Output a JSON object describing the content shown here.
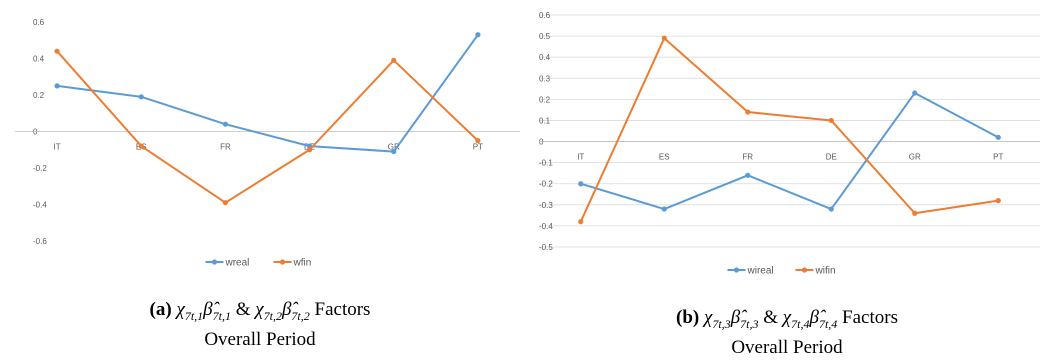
{
  "chart_data": [
    {
      "type": "line",
      "categories": [
        "IT",
        "ES",
        "FR",
        "DE",
        "GR",
        "PT"
      ],
      "series": [
        {
          "name": "wreal",
          "color": "#5B9BD5",
          "values": [
            0.25,
            0.19,
            0.04,
            -0.08,
            -0.11,
            0.53
          ]
        },
        {
          "name": "wfin",
          "color": "#ED7D31",
          "values": [
            0.44,
            -0.08,
            -0.39,
            -0.1,
            0.39,
            -0.05
          ]
        }
      ],
      "ylim": [
        -0.6,
        0.6
      ],
      "yticks": [
        "0.6",
        "0.4",
        "0.2",
        "0",
        "-0.2",
        "-0.4",
        "-0.6"
      ],
      "ytick_values": [
        0.6,
        0.4,
        0.2,
        0,
        -0.2,
        -0.4,
        -0.6
      ],
      "grid": false,
      "legend": "bottom",
      "caption": {
        "tag": "(a)",
        "formula": "χ7t,1β̂7t,1 & χ7t,2β̂7t,2",
        "pre": "χ",
        "s1": "7t,1",
        "b1": "β̂",
        "s2": "7t,1",
        "amp": "&",
        "pre2": "χ",
        "s3": "7t,2",
        "b2": "β̂",
        "s4": "7t,2",
        "word": "Factors",
        "line2": "Overall Period"
      }
    },
    {
      "type": "line",
      "categories": [
        "IT",
        "ES",
        "FR",
        "DE",
        "GR",
        "PT"
      ],
      "series": [
        {
          "name": "wireal",
          "color": "#5B9BD5",
          "values": [
            -0.2,
            -0.32,
            -0.16,
            -0.32,
            0.23,
            0.02
          ]
        },
        {
          "name": "wifin",
          "color": "#ED7D31",
          "values": [
            -0.38,
            0.49,
            0.14,
            0.1,
            -0.34,
            -0.28
          ]
        }
      ],
      "ylim": [
        -0.5,
        0.6
      ],
      "yticks": [
        "0.6",
        "0.5",
        "0.4",
        "0.3",
        "0.2",
        "0.1",
        "0",
        "-0.1",
        "-0.2",
        "-0.3",
        "-0.4",
        "-0.5"
      ],
      "ytick_values": [
        0.6,
        0.5,
        0.4,
        0.3,
        0.2,
        0.1,
        0,
        -0.1,
        -0.2,
        -0.3,
        -0.4,
        -0.5
      ],
      "grid": true,
      "legend": "bottom",
      "caption": {
        "tag": "(b)",
        "formula": "χ7t,3β̂7t,3 & χ7t,4β̂7t,4",
        "pre": "χ",
        "s1": "7t,3",
        "b1": "β̂",
        "s2": "7t,3",
        "amp": "&",
        "pre2": "χ",
        "s3": "7t,4",
        "b2": "β̂",
        "s4": "7t,4",
        "word": "Factors",
        "line2": "Overall Period"
      }
    }
  ]
}
